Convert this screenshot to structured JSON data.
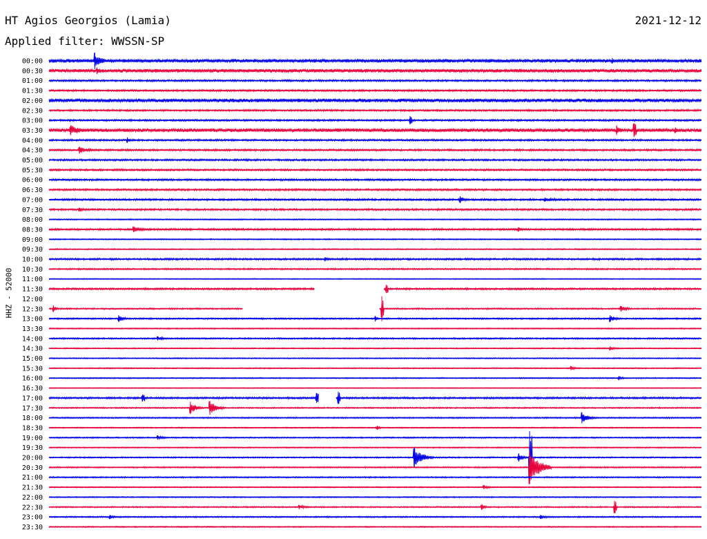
{
  "header": {
    "station": "HT Agios Georgios (Lamia)",
    "date": "2021-12-12",
    "filter_prefix": "Applied filter: ",
    "filter_name": "WWSSN-SP"
  },
  "channel_label": "HHZ - 52000",
  "colors": {
    "even_trace": "#0000e6",
    "odd_trace": "#e6003c",
    "background": "#ffffff",
    "text": "#000000"
  },
  "chart_data": {
    "type": "line",
    "description_kind": "helicorder",
    "y_tick_labels": [
      "00:00",
      "00:30",
      "01:00",
      "01:30",
      "02:00",
      "02:30",
      "03:00",
      "03:30",
      "04:00",
      "04:30",
      "05:00",
      "05:30",
      "06:00",
      "06:30",
      "07:00",
      "07:30",
      "08:00",
      "08:30",
      "09:00",
      "09:30",
      "10:00",
      "10:30",
      "11:00",
      "11:30",
      "12:00",
      "12:30",
      "13:00",
      "13:30",
      "14:00",
      "14:30",
      "15:00",
      "15:30",
      "16:00",
      "16:30",
      "17:00",
      "17:30",
      "18:00",
      "18:30",
      "19:00",
      "19:30",
      "20:00",
      "20:30",
      "21:00",
      "21:30",
      "22:00",
      "22:30",
      "23:00",
      "23:30"
    ],
    "trace_minutes": 30,
    "background_noise": [
      2,
      2,
      1,
      1,
      2,
      1,
      1,
      2,
      1,
      1,
      1,
      1,
      1,
      1,
      1,
      1,
      0.6,
      1,
      0.6,
      0.6,
      1,
      0.8,
      0.5,
      1,
      0.5,
      0.8,
      0.8,
      0.6,
      0.8,
      0.6,
      0.6,
      0.6,
      0.6,
      0.4,
      1,
      0.7,
      0.7,
      0.6,
      0.7,
      0.6,
      0.7,
      0.7,
      0.7,
      0.6,
      0.6,
      0.7,
      0.7,
      0.6
    ],
    "gaps": [
      {
        "trace": "11:30",
        "start_min": 12.2,
        "end_min": 15.4
      },
      {
        "trace": "12:00",
        "start_min": 0,
        "end_min": 30
      },
      {
        "trace": "12:30",
        "start_min": 8.9,
        "end_min": 15.2
      },
      {
        "trace": "17:00",
        "start_min": 12.4,
        "end_min": 13.2
      }
    ],
    "events": [
      {
        "trace": "00:00",
        "minute": 2.1,
        "amplitude": 12,
        "duration_min": 0.7
      },
      {
        "trace": "00:00",
        "minute": 25.9,
        "amplitude": 4,
        "duration_min": 0.5
      },
      {
        "trace": "00:30",
        "minute": 2.2,
        "amplitude": 5,
        "duration_min": 0.6
      },
      {
        "trace": "03:00",
        "minute": 16.6,
        "amplitude": 6,
        "duration_min": 0.1
      },
      {
        "trace": "03:30",
        "minute": 1.0,
        "amplitude": 7,
        "duration_min": 1.3
      },
      {
        "trace": "03:30",
        "minute": 26.1,
        "amplitude": 7,
        "duration_min": 0.5
      },
      {
        "trace": "03:30",
        "minute": 26.9,
        "amplitude": 10,
        "duration_min": 0.1
      },
      {
        "trace": "03:30",
        "minute": 28.8,
        "amplitude": 4,
        "duration_min": 0.4
      },
      {
        "trace": "04:00",
        "minute": 3.6,
        "amplitude": 4,
        "duration_min": 0.3
      },
      {
        "trace": "04:30",
        "minute": 1.4,
        "amplitude": 5,
        "duration_min": 1.0
      },
      {
        "trace": "07:00",
        "minute": 18.9,
        "amplitude": 5,
        "duration_min": 0.5
      },
      {
        "trace": "07:00",
        "minute": 22.8,
        "amplitude": 3,
        "duration_min": 1.5
      },
      {
        "trace": "07:30",
        "minute": 1.4,
        "amplitude": 3,
        "duration_min": 0.6
      },
      {
        "trace": "08:30",
        "minute": 3.9,
        "amplitude": 4,
        "duration_min": 1.0
      },
      {
        "trace": "08:30",
        "minute": 21.6,
        "amplitude": 3,
        "duration_min": 0.6
      },
      {
        "trace": "10:00",
        "minute": 12.7,
        "amplitude": 3,
        "duration_min": 0.5
      },
      {
        "trace": "11:30",
        "minute": 15.5,
        "amplitude": 6,
        "duration_min": 0.1
      },
      {
        "trace": "12:30",
        "minute": 0.2,
        "amplitude": 5,
        "duration_min": 0.3
      },
      {
        "trace": "12:30",
        "minute": 15.3,
        "amplitude": 18,
        "duration_min": 0.1
      },
      {
        "trace": "12:30",
        "minute": 26.3,
        "amplitude": 4,
        "duration_min": 0.7
      },
      {
        "trace": "13:00",
        "minute": 3.2,
        "amplitude": 5,
        "duration_min": 0.6
      },
      {
        "trace": "13:00",
        "minute": 15.0,
        "amplitude": 4,
        "duration_min": 0.2
      },
      {
        "trace": "13:00",
        "minute": 25.8,
        "amplitude": 5,
        "duration_min": 0.6
      },
      {
        "trace": "14:00",
        "minute": 5.0,
        "amplitude": 3,
        "duration_min": 0.8
      },
      {
        "trace": "14:30",
        "minute": 25.8,
        "amplitude": 3,
        "duration_min": 0.5
      },
      {
        "trace": "15:30",
        "minute": 24.0,
        "amplitude": 3,
        "duration_min": 0.6
      },
      {
        "trace": "16:00",
        "minute": 26.2,
        "amplitude": 3,
        "duration_min": 0.4
      },
      {
        "trace": "17:00",
        "minute": 4.3,
        "amplitude": 5,
        "duration_min": 0.1
      },
      {
        "trace": "17:00",
        "minute": 12.3,
        "amplitude": 7,
        "duration_min": 0.1
      },
      {
        "trace": "17:00",
        "minute": 13.3,
        "amplitude": 9,
        "duration_min": 0.1
      },
      {
        "trace": "17:30",
        "minute": 6.5,
        "amplitude": 9,
        "duration_min": 0.6
      },
      {
        "trace": "17:30",
        "minute": 7.4,
        "amplitude": 10,
        "duration_min": 0.7
      },
      {
        "trace": "18:00",
        "minute": 24.5,
        "amplitude": 8,
        "duration_min": 0.7
      },
      {
        "trace": "18:30",
        "minute": 15.1,
        "amplitude": 3,
        "duration_min": 0.3
      },
      {
        "trace": "19:00",
        "minute": 5.0,
        "amplitude": 3,
        "duration_min": 0.7
      },
      {
        "trace": "20:00",
        "minute": 16.8,
        "amplitude": 14,
        "duration_min": 0.9
      },
      {
        "trace": "20:00",
        "minute": 21.6,
        "amplitude": 6,
        "duration_min": 0.5
      },
      {
        "trace": "20:00",
        "minute": 22.1,
        "amplitude": 38,
        "duration_min": 0.1
      },
      {
        "trace": "20:30",
        "minute": 22.1,
        "amplitude": 24,
        "duration_min": 1.0
      },
      {
        "trace": "21:30",
        "minute": 20.0,
        "amplitude": 3,
        "duration_min": 0.5
      },
      {
        "trace": "22:30",
        "minute": 11.5,
        "amplitude": 3,
        "duration_min": 0.8
      },
      {
        "trace": "22:30",
        "minute": 19.9,
        "amplitude": 4,
        "duration_min": 0.4
      },
      {
        "trace": "22:30",
        "minute": 26.0,
        "amplitude": 9,
        "duration_min": 0.1
      },
      {
        "trace": "23:00",
        "minute": 2.8,
        "amplitude": 3,
        "duration_min": 0.6
      },
      {
        "trace": "23:00",
        "minute": 22.6,
        "amplitude": 3,
        "duration_min": 0.7
      }
    ]
  }
}
